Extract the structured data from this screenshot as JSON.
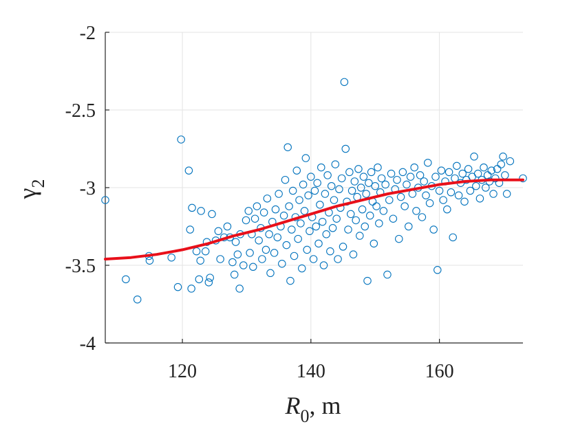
{
  "chart_data": {
    "type": "scatter",
    "title": "",
    "xlabel_symbol": "R",
    "xlabel_subscript": "0",
    "xlabel_suffix": ", m",
    "ylabel_symbol": "γ",
    "ylabel_subscript": "2",
    "xlim": [
      108,
      173
    ],
    "ylim": [
      -4,
      -2
    ],
    "xticks": [
      120,
      140,
      160
    ],
    "xtick_labels": [
      "120",
      "140",
      "160"
    ],
    "yticks": [
      -4,
      -3.5,
      -3,
      -2.5,
      -2
    ],
    "ytick_labels": [
      "-4",
      "-3.5",
      "-3",
      "-2.5",
      "-2"
    ],
    "grid": true,
    "colors": {
      "points": "#0072BD",
      "fit": "#E8101A",
      "axis": "#262626"
    },
    "series": [
      {
        "name": "observations",
        "kind": "scatter",
        "points": [
          [
            108.0,
            -3.08
          ],
          [
            111.2,
            -3.59
          ],
          [
            113.0,
            -3.72
          ],
          [
            114.8,
            -3.44
          ],
          [
            114.9,
            -3.47
          ],
          [
            118.3,
            -3.45
          ],
          [
            119.3,
            -3.64
          ],
          [
            119.8,
            -2.69
          ],
          [
            121.0,
            -2.89
          ],
          [
            121.2,
            -3.27
          ],
          [
            121.4,
            -3.65
          ],
          [
            121.5,
            -3.13
          ],
          [
            122.2,
            -3.41
          ],
          [
            122.6,
            -3.59
          ],
          [
            122.8,
            -3.47
          ],
          [
            122.9,
            -3.15
          ],
          [
            123.6,
            -3.41
          ],
          [
            123.8,
            -3.35
          ],
          [
            124.1,
            -3.61
          ],
          [
            124.3,
            -3.58
          ],
          [
            124.6,
            -3.17
          ],
          [
            125.2,
            -3.34
          ],
          [
            125.6,
            -3.28
          ],
          [
            125.9,
            -3.46
          ],
          [
            126.5,
            -3.32
          ],
          [
            127.0,
            -3.25
          ],
          [
            127.4,
            -3.32
          ],
          [
            127.8,
            -3.48
          ],
          [
            128.1,
            -3.56
          ],
          [
            128.3,
            -3.35
          ],
          [
            128.6,
            -3.43
          ],
          [
            128.9,
            -3.65
          ],
          [
            129.0,
            -3.3
          ],
          [
            129.5,
            -3.5
          ],
          [
            129.9,
            -3.21
          ],
          [
            130.3,
            -3.15
          ],
          [
            130.5,
            -3.42
          ],
          [
            130.8,
            -3.3
          ],
          [
            131.0,
            -3.51
          ],
          [
            131.3,
            -3.2
          ],
          [
            131.6,
            -3.12
          ],
          [
            131.9,
            -3.34
          ],
          [
            132.2,
            -3.26
          ],
          [
            132.4,
            -3.46
          ],
          [
            132.7,
            -3.16
          ],
          [
            133.0,
            -3.4
          ],
          [
            133.2,
            -3.07
          ],
          [
            133.5,
            -3.3
          ],
          [
            133.7,
            -3.55
          ],
          [
            134.0,
            -3.22
          ],
          [
            134.3,
            -3.42
          ],
          [
            134.5,
            -3.14
          ],
          [
            134.8,
            -3.32
          ],
          [
            135.0,
            -3.04
          ],
          [
            135.3,
            -3.25
          ],
          [
            135.5,
            -3.49
          ],
          [
            135.8,
            -3.18
          ],
          [
            136.0,
            -2.95
          ],
          [
            136.2,
            -3.37
          ],
          [
            136.4,
            -2.74
          ],
          [
            136.6,
            -3.12
          ],
          [
            136.8,
            -3.6
          ],
          [
            137.0,
            -3.27
          ],
          [
            137.2,
            -3.02
          ],
          [
            137.4,
            -3.44
          ],
          [
            137.6,
            -3.19
          ],
          [
            137.8,
            -2.89
          ],
          [
            138.0,
            -3.33
          ],
          [
            138.2,
            -3.08
          ],
          [
            138.4,
            -3.23
          ],
          [
            138.6,
            -3.52
          ],
          [
            138.8,
            -2.98
          ],
          [
            139.0,
            -3.15
          ],
          [
            139.2,
            -2.81
          ],
          [
            139.4,
            -3.4
          ],
          [
            139.6,
            -3.05
          ],
          [
            139.8,
            -3.28
          ],
          [
            140.0,
            -2.93
          ],
          [
            140.2,
            -3.19
          ],
          [
            140.4,
            -3.46
          ],
          [
            140.6,
            -3.02
          ],
          [
            140.8,
            -3.25
          ],
          [
            141.0,
            -2.97
          ],
          [
            141.2,
            -3.36
          ],
          [
            141.4,
            -3.11
          ],
          [
            141.6,
            -2.87
          ],
          [
            141.8,
            -3.22
          ],
          [
            142.0,
            -3.5
          ],
          [
            142.2,
            -3.04
          ],
          [
            142.4,
            -3.3
          ],
          [
            142.6,
            -2.92
          ],
          [
            142.8,
            -3.16
          ],
          [
            143.0,
            -3.41
          ],
          [
            143.2,
            -2.99
          ],
          [
            143.4,
            -3.26
          ],
          [
            143.6,
            -3.08
          ],
          [
            143.8,
            -2.85
          ],
          [
            144.0,
            -3.2
          ],
          [
            144.2,
            -3.46
          ],
          [
            144.4,
            -3.01
          ],
          [
            144.6,
            -3.13
          ],
          [
            144.8,
            -2.94
          ],
          [
            145.0,
            -3.38
          ],
          [
            145.2,
            -2.32
          ],
          [
            145.4,
            -2.75
          ],
          [
            145.6,
            -3.09
          ],
          [
            145.8,
            -3.27
          ],
          [
            146.0,
            -2.9
          ],
          [
            146.2,
            -3.17
          ],
          [
            146.4,
            -3.02
          ],
          [
            146.6,
            -3.43
          ],
          [
            146.8,
            -2.96
          ],
          [
            147.0,
            -3.21
          ],
          [
            147.2,
            -3.06
          ],
          [
            147.4,
            -2.88
          ],
          [
            147.6,
            -3.31
          ],
          [
            147.8,
            -3.0
          ],
          [
            148.0,
            -3.14
          ],
          [
            148.2,
            -2.93
          ],
          [
            148.4,
            -3.25
          ],
          [
            148.6,
            -3.04
          ],
          [
            148.8,
            -3.6
          ],
          [
            149.0,
            -2.97
          ],
          [
            149.2,
            -3.18
          ],
          [
            149.4,
            -2.9
          ],
          [
            149.6,
            -3.09
          ],
          [
            149.8,
            -3.36
          ],
          [
            150.0,
            -2.99
          ],
          [
            150.2,
            -3.12
          ],
          [
            150.4,
            -2.87
          ],
          [
            150.6,
            -3.23
          ],
          [
            150.8,
            -3.03
          ],
          [
            151.0,
            -2.94
          ],
          [
            151.3,
            -3.15
          ],
          [
            151.6,
            -2.98
          ],
          [
            151.9,
            -3.56
          ],
          [
            152.2,
            -3.08
          ],
          [
            152.5,
            -2.91
          ],
          [
            152.8,
            -3.2
          ],
          [
            153.1,
            -3.01
          ],
          [
            153.4,
            -2.95
          ],
          [
            153.7,
            -3.33
          ],
          [
            154.0,
            -3.06
          ],
          [
            154.3,
            -2.9
          ],
          [
            154.6,
            -3.12
          ],
          [
            154.9,
            -2.98
          ],
          [
            155.2,
            -3.25
          ],
          [
            155.5,
            -2.93
          ],
          [
            155.8,
            -3.04
          ],
          [
            156.1,
            -2.87
          ],
          [
            156.4,
            -3.15
          ],
          [
            156.7,
            -3.0
          ],
          [
            157.0,
            -2.92
          ],
          [
            157.3,
            -3.19
          ],
          [
            157.6,
            -2.96
          ],
          [
            157.9,
            -3.05
          ],
          [
            158.2,
            -2.84
          ],
          [
            158.5,
            -3.1
          ],
          [
            158.8,
            -2.99
          ],
          [
            159.1,
            -3.27
          ],
          [
            159.4,
            -2.93
          ],
          [
            159.7,
            -3.53
          ],
          [
            160.0,
            -3.02
          ],
          [
            160.3,
            -2.89
          ],
          [
            160.6,
            -3.08
          ],
          [
            160.9,
            -2.96
          ],
          [
            161.2,
            -3.14
          ],
          [
            161.5,
            -2.9
          ],
          [
            161.8,
            -3.03
          ],
          [
            162.1,
            -3.32
          ],
          [
            162.4,
            -2.94
          ],
          [
            162.7,
            -2.86
          ],
          [
            163.0,
            -3.05
          ],
          [
            163.3,
            -2.97
          ],
          [
            163.6,
            -2.91
          ],
          [
            163.9,
            -3.09
          ],
          [
            164.2,
            -2.95
          ],
          [
            164.5,
            -2.88
          ],
          [
            164.8,
            -3.02
          ],
          [
            165.1,
            -2.93
          ],
          [
            165.4,
            -2.8
          ],
          [
            165.7,
            -2.99
          ],
          [
            166.0,
            -2.91
          ],
          [
            166.3,
            -3.07
          ],
          [
            166.6,
            -2.95
          ],
          [
            166.9,
            -2.87
          ],
          [
            167.2,
            -3.0
          ],
          [
            167.5,
            -2.92
          ],
          [
            167.8,
            -2.96
          ],
          [
            168.1,
            -2.89
          ],
          [
            168.4,
            -3.04
          ],
          [
            168.7,
            -2.94
          ],
          [
            169.0,
            -2.88
          ],
          [
            169.3,
            -2.97
          ],
          [
            169.6,
            -2.85
          ],
          [
            169.9,
            -2.8
          ],
          [
            170.2,
            -2.92
          ],
          [
            170.5,
            -3.04
          ],
          [
            171.0,
            -2.83
          ],
          [
            173.0,
            -2.94
          ]
        ]
      },
      {
        "name": "fit",
        "kind": "line",
        "points": [
          [
            108,
            -3.46
          ],
          [
            112,
            -3.45
          ],
          [
            116,
            -3.43
          ],
          [
            120,
            -3.4
          ],
          [
            124,
            -3.36
          ],
          [
            128,
            -3.31
          ],
          [
            132,
            -3.27
          ],
          [
            136,
            -3.22
          ],
          [
            140,
            -3.17
          ],
          [
            144,
            -3.12
          ],
          [
            148,
            -3.08
          ],
          [
            152,
            -3.04
          ],
          [
            156,
            -3.01
          ],
          [
            160,
            -2.98
          ],
          [
            164,
            -2.96
          ],
          [
            168,
            -2.95
          ],
          [
            173,
            -2.95
          ]
        ]
      }
    ]
  }
}
